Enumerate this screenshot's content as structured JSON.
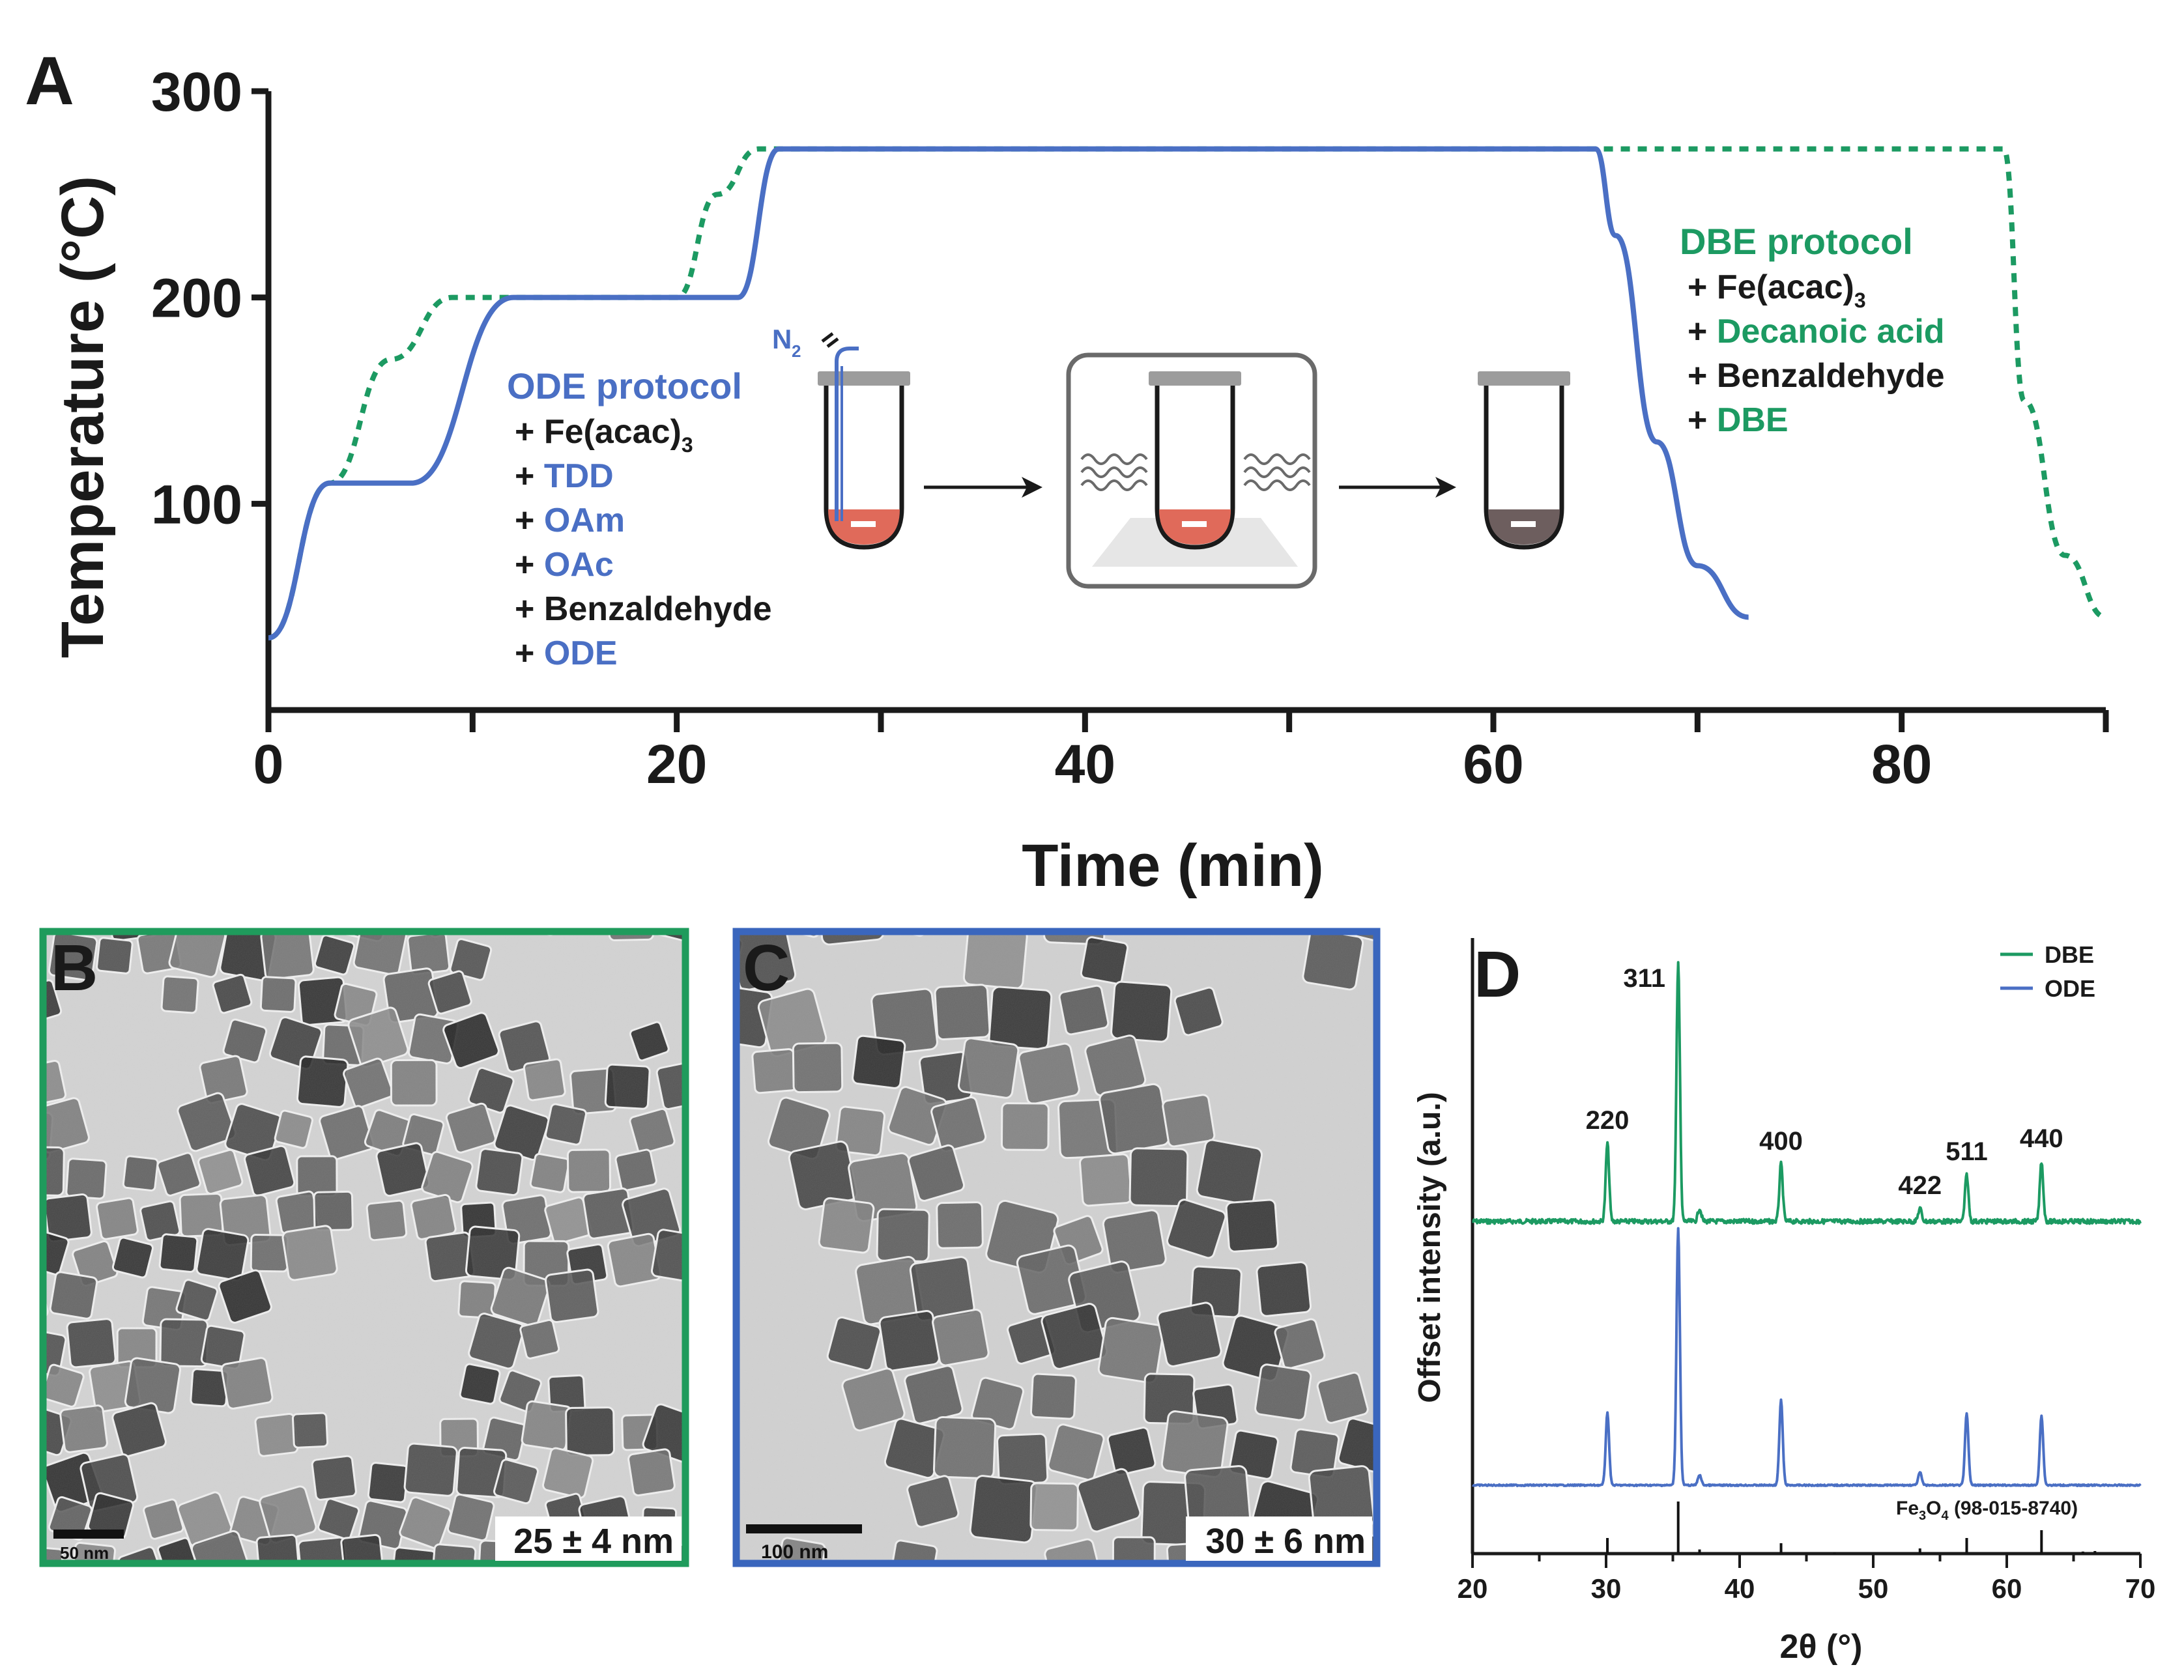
{
  "panels": {
    "a": "A",
    "b": "B",
    "c": "C",
    "d": "D"
  },
  "colors": {
    "ode": "#4a6fc4",
    "dbe": "#1c9a62",
    "axis": "#1a1a1a",
    "sample": "#e06a5a",
    "product": "#6d5e5e",
    "frame_b": "#1f9b5c",
    "frame_c": "#3a66bd"
  },
  "panel_a": {
    "xlabel": "Time (min)",
    "ylabel": "Temperature (°C)",
    "ode_title": "ODE protocol",
    "ode_items": [
      {
        "prefix": "+ ",
        "text": "Fe(acac)",
        "sub": "3",
        "color": "black"
      },
      {
        "prefix": "+ ",
        "text": "TDD",
        "sub": "",
        "color": "ode"
      },
      {
        "prefix": "+ ",
        "text": "OAm",
        "sub": "",
        "color": "ode"
      },
      {
        "prefix": "+ ",
        "text": "OAc",
        "sub": "",
        "color": "ode"
      },
      {
        "prefix": "+ ",
        "text": "Benzaldehyde",
        "sub": "",
        "color": "black"
      },
      {
        "prefix": "+ ",
        "text": "ODE",
        "sub": "",
        "color": "ode"
      }
    ],
    "dbe_title": "DBE protocol",
    "dbe_items": [
      {
        "prefix": "+ ",
        "text": "Fe(acac)",
        "sub": "3",
        "color": "black"
      },
      {
        "prefix": "+ ",
        "text": "Decanoic acid",
        "sub": "",
        "color": "dbe"
      },
      {
        "prefix": "+ ",
        "text": "Benzaldehyde",
        "sub": "",
        "color": "black"
      },
      {
        "prefix": "+ ",
        "text": "DBE",
        "sub": "",
        "color": "dbe"
      }
    ],
    "gas_label": "N",
    "gas_sub": "2"
  },
  "panel_b": {
    "scale_bar": "50 nm",
    "size_label": "25 ± 4 nm"
  },
  "panel_c": {
    "scale_bar": "100 nm",
    "size_label": "30 ± 6 nm"
  },
  "panel_d": {
    "xlabel": "2θ (°)",
    "ylabel": "Offset intensity (a.u.)",
    "reference_label": "Fe",
    "reference_sub1": "3",
    "reference_mid": "O",
    "reference_sub2": "4",
    "reference_code": " (98-015-8740)"
  },
  "chart_data": [
    {
      "type": "line",
      "panel": "A",
      "xlabel": "Time (min)",
      "ylabel": "Temperature (°C)",
      "xlim": [
        0,
        90
      ],
      "ylim": [
        0,
        300
      ],
      "x_ticks": [
        0,
        20,
        40,
        60,
        80
      ],
      "x_minor_ticks": [
        10,
        30,
        50,
        70,
        90
      ],
      "y_ticks": [
        100,
        200,
        300
      ],
      "series": [
        {
          "name": "ODE protocol",
          "style": "solid",
          "color": "#4a6fc4",
          "x": [
            0,
            3,
            7,
            12,
            20,
            23,
            25,
            65,
            66,
            68,
            70,
            72.5
          ],
          "y": [
            35,
            110,
            110,
            200,
            200,
            200,
            272,
            272,
            230,
            130,
            70,
            45
          ]
        },
        {
          "name": "DBE protocol",
          "style": "dotted",
          "color": "#1c9a62",
          "x": [
            0,
            3,
            6,
            9,
            20,
            22,
            24,
            85,
            86,
            88,
            90
          ],
          "y": [
            35,
            110,
            170,
            200,
            200,
            250,
            272,
            272,
            150,
            75,
            45
          ]
        }
      ]
    },
    {
      "type": "line",
      "panel": "D",
      "xlabel": "2θ (°)",
      "ylabel": "Offset intensity (a.u.)",
      "xlim": [
        20,
        70
      ],
      "x_ticks": [
        20,
        30,
        40,
        50,
        60,
        70
      ],
      "legend": "top-right",
      "series": [
        {
          "name": "DBE",
          "color": "#1c9a62",
          "offset": 1.0,
          "noise": "high",
          "peaks": [
            {
              "x": 30.1,
              "height": 0.3,
              "label": "220"
            },
            {
              "x": 35.4,
              "height": 1.0,
              "label": "311"
            },
            {
              "x": 37.0,
              "height": 0.05,
              "label": ""
            },
            {
              "x": 43.1,
              "height": 0.22,
              "label": "400"
            },
            {
              "x": 53.5,
              "height": 0.05,
              "label": "422"
            },
            {
              "x": 57.0,
              "height": 0.18,
              "label": "511"
            },
            {
              "x": 62.6,
              "height": 0.23,
              "label": "440"
            }
          ]
        },
        {
          "name": "ODE",
          "color": "#4a6fc4",
          "offset": 0.0,
          "noise": "low",
          "peaks": [
            {
              "x": 30.1,
              "height": 0.28
            },
            {
              "x": 35.4,
              "height": 1.0
            },
            {
              "x": 37.0,
              "height": 0.04
            },
            {
              "x": 43.1,
              "height": 0.33
            },
            {
              "x": 53.5,
              "height": 0.05
            },
            {
              "x": 57.0,
              "height": 0.28
            },
            {
              "x": 62.6,
              "height": 0.27
            }
          ]
        }
      ],
      "reference": {
        "name": "Fe3O4 (98-015-8740)",
        "positions": [
          30.1,
          35.4,
          37.0,
          43.1,
          47.1,
          53.5,
          57.0,
          62.6,
          65.7,
          66.6
        ],
        "heights": [
          0.3,
          1.0,
          0.08,
          0.2,
          0.02,
          0.1,
          0.3,
          0.45,
          0.04,
          0.05
        ]
      }
    }
  ]
}
